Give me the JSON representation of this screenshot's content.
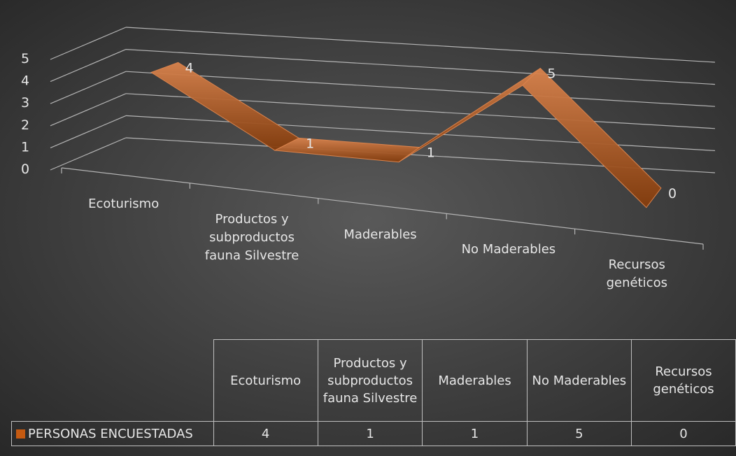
{
  "colors": {
    "series": "#c55a11",
    "series_light": "#d9834d",
    "series_dark": "#843c0c",
    "gridline": "#b4b4b4",
    "text": "#e6e6e6",
    "background_center": "#595959",
    "background_edge": "#262626"
  },
  "chart_data": {
    "type": "line",
    "style": "3d-line",
    "categories": [
      "Ecoturismo",
      "Productos y subproductos fauna Silvestre",
      "Maderables",
      "No Maderables",
      "Recursos genéticos"
    ],
    "series": [
      {
        "name": "PERSONAS ENCUESTADAS",
        "values": [
          4,
          1,
          1,
          5,
          0
        ]
      }
    ],
    "data_labels": [
      "4",
      "1",
      "1",
      "5",
      "0"
    ],
    "y_ticks": [
      "0",
      "1",
      "2",
      "3",
      "4",
      "5"
    ],
    "ylim": [
      0,
      5
    ],
    "grid": true,
    "data_table": true
  }
}
